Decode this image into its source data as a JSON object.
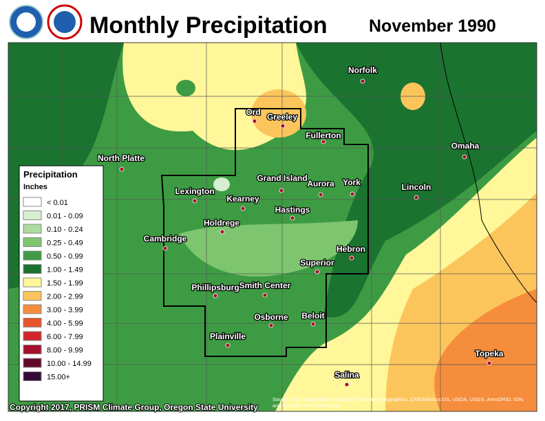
{
  "header": {
    "title": "Monthly Precipitation",
    "date": "November 1990"
  },
  "legend": {
    "title": "Precipitation",
    "units": "Inches",
    "items": [
      {
        "label": "< 0.01",
        "color": "#ffffff"
      },
      {
        "label": "0.01 - 0.09",
        "color": "#d6efd0"
      },
      {
        "label": "0.10 - 0.24",
        "color": "#acdca0"
      },
      {
        "label": "0.25 - 0.49",
        "color": "#7ec56f"
      },
      {
        "label": "0.50 - 0.99",
        "color": "#3d9c43"
      },
      {
        "label": "1.00 - 1.49",
        "color": "#1b7330"
      },
      {
        "label": "1.50 - 1.99",
        "color": "#fff799"
      },
      {
        "label": "2.00 - 2.99",
        "color": "#fcc55c"
      },
      {
        "label": "3.00 - 3.99",
        "color": "#f58d3c"
      },
      {
        "label": "4.00 - 5.99",
        "color": "#e9532b"
      },
      {
        "label": "6.00 - 7.99",
        "color": "#d2232a"
      },
      {
        "label": "8.00 - 9.99",
        "color": "#a5112c"
      },
      {
        "label": "10.00 - 14.99",
        "color": "#650b27"
      },
      {
        "label": "15.00+",
        "color": "#360a38"
      }
    ]
  },
  "cities": [
    "Ord",
    "Greeley",
    "Norfolk",
    "Fullerton",
    "North Platte",
    "Omaha",
    "Grand Island",
    "Aurora",
    "York",
    "Lincoln",
    "Lexington",
    "Kearney",
    "Hastings",
    "Holdrege",
    "Cambridge",
    "Hebron",
    "Superior",
    "Phillipsburg",
    "Smith Center",
    "Beloit",
    "Osborne",
    "Plainville",
    "Salina",
    "Topeka"
  ],
  "credit": "Copyright 2017, PRISM Climate Group, Oregon State University",
  "source": "Source: Esri, DigitalGlobe, GeoEye, Earthstar Geographics, CNES/Airbus DS, USDA, USGS, AeroGRID, IGN, and the GIS User Community"
}
